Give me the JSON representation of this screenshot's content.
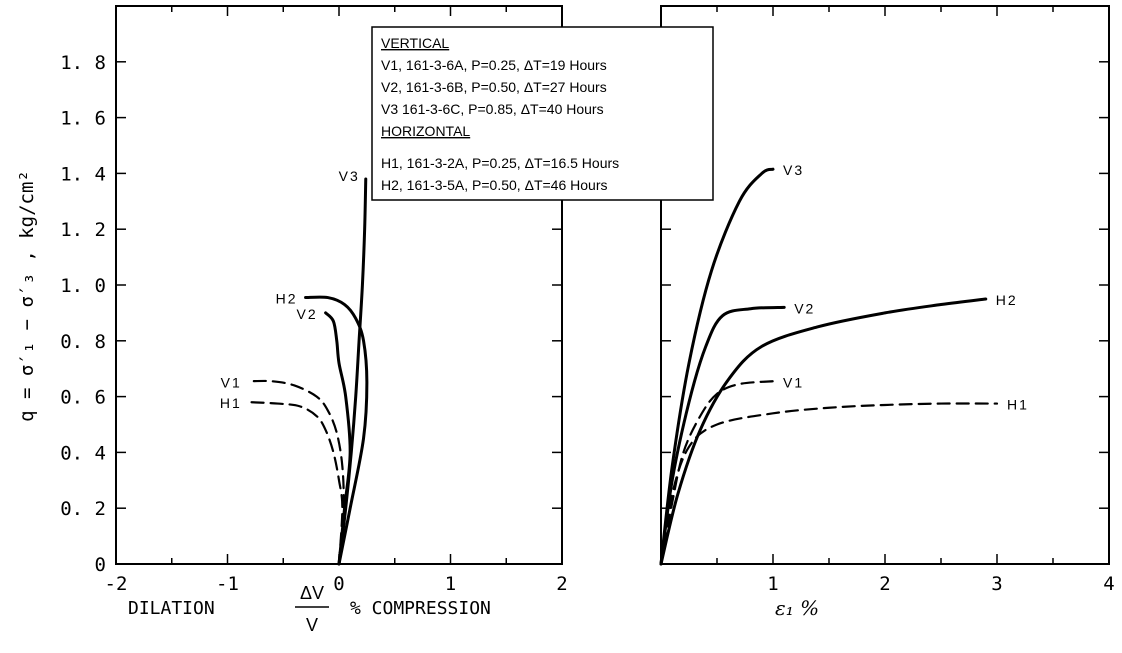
{
  "y_axis": {
    "label": "q = σ′₁ − σ′₃ ,  kg/cm²",
    "ticks": [
      {
        "value": 0,
        "label": "0"
      },
      {
        "value": 0.2,
        "label": "0. 2"
      },
      {
        "value": 0.4,
        "label": "0. 4"
      },
      {
        "value": 0.6,
        "label": "0. 6"
      },
      {
        "value": 0.8,
        "label": "0. 8"
      },
      {
        "value": 1.0,
        "label": "1. 0"
      },
      {
        "value": 1.2,
        "label": "1. 2"
      },
      {
        "value": 1.4,
        "label": "1. 4"
      },
      {
        "value": 1.6,
        "label": "1. 6"
      },
      {
        "value": 1.8,
        "label": "1. 8"
      }
    ]
  },
  "legend": {
    "vertical_heading": "VERTICAL",
    "vertical_entries": [
      "V1, 161-3-6A, P=0.25, ΔT=19 Hours",
      "V2, 161-3-6B, P=0.50, ΔT=27 Hours",
      "V3  161-3-6C, P=0.85, ΔT=40 Hours"
    ],
    "horizontal_heading": "HORIZONTAL",
    "horizontal_entries": [
      "H1, 161-3-2A, P=0.25, ΔT=16.5 Hours",
      "H2, 161-3-5A, P=0.50, ΔT=46 Hours"
    ]
  },
  "chart_data": [
    {
      "type": "line",
      "panel": "volumetric-strain",
      "xlabel_left": "DILATION",
      "xlabel_fraction_top": "ΔV",
      "xlabel_fraction_bottom": "V",
      "xlabel_right": "% COMPRESSION",
      "xlim": [
        -2,
        2
      ],
      "ylim": [
        0,
        2.0
      ],
      "x_ticks": [
        {
          "value": -2,
          "label": "-2"
        },
        {
          "value": -1,
          "label": "-1"
        },
        {
          "value": 0,
          "label": "0"
        },
        {
          "value": 1,
          "label": "1"
        },
        {
          "value": 2,
          "label": "2"
        }
      ],
      "series": [
        {
          "name": "V1",
          "style": "dashed",
          "x": [
            0.0,
            0.04,
            0.03,
            -0.02,
            -0.1,
            -0.2,
            -0.4,
            -0.6,
            -0.8
          ],
          "y": [
            0.0,
            0.2,
            0.35,
            0.47,
            0.55,
            0.6,
            0.64,
            0.655,
            0.655
          ]
        },
        {
          "name": "H1",
          "style": "dashed",
          "x": [
            0.0,
            0.03,
            0.0,
            -0.05,
            -0.12,
            -0.2,
            -0.35,
            -0.55,
            -0.8
          ],
          "y": [
            0.0,
            0.2,
            0.3,
            0.4,
            0.48,
            0.53,
            0.565,
            0.575,
            0.58
          ]
        },
        {
          "name": "V2",
          "style": "solid",
          "x": [
            0.0,
            0.05,
            0.1,
            0.06,
            0.0,
            -0.02,
            -0.05,
            -0.12
          ],
          "y": [
            0.0,
            0.2,
            0.4,
            0.6,
            0.72,
            0.8,
            0.87,
            0.9
          ]
        },
        {
          "name": "H2",
          "style": "solid",
          "x": [
            0.0,
            0.1,
            0.22,
            0.25,
            0.22,
            0.15,
            0.05,
            -0.1,
            -0.3
          ],
          "y": [
            0.0,
            0.2,
            0.45,
            0.65,
            0.8,
            0.88,
            0.93,
            0.955,
            0.955
          ]
        },
        {
          "name": "V3",
          "style": "solid",
          "x": [
            0.0,
            0.06,
            0.11,
            0.15,
            0.18,
            0.21,
            0.23,
            0.24
          ],
          "y": [
            0.0,
            0.2,
            0.4,
            0.6,
            0.8,
            1.0,
            1.2,
            1.38
          ]
        }
      ]
    },
    {
      "type": "line",
      "panel": "axial-strain",
      "xlabel": "ε₁  %",
      "xlim": [
        0,
        4
      ],
      "ylim": [
        0,
        2.0
      ],
      "x_ticks": [
        {
          "value": 1,
          "label": "1"
        },
        {
          "value": 2,
          "label": "2"
        },
        {
          "value": 3,
          "label": "3"
        },
        {
          "value": 4,
          "label": "4"
        }
      ],
      "series": [
        {
          "name": "V1",
          "style": "dashed",
          "x": [
            0.0,
            0.1,
            0.2,
            0.35,
            0.5,
            0.7,
            1.0
          ],
          "y": [
            0.0,
            0.22,
            0.4,
            0.53,
            0.61,
            0.645,
            0.655
          ]
        },
        {
          "name": "H1",
          "style": "dashed",
          "x": [
            0.0,
            0.1,
            0.25,
            0.5,
            1.0,
            1.5,
            2.0,
            2.5,
            3.0
          ],
          "y": [
            0.0,
            0.25,
            0.42,
            0.5,
            0.54,
            0.56,
            0.57,
            0.575,
            0.575
          ]
        },
        {
          "name": "V2",
          "style": "solid",
          "x": [
            0.0,
            0.1,
            0.25,
            0.4,
            0.55,
            0.8,
            1.1
          ],
          "y": [
            0.0,
            0.3,
            0.58,
            0.78,
            0.89,
            0.915,
            0.92
          ]
        },
        {
          "name": "H2",
          "style": "solid",
          "x": [
            0.0,
            0.15,
            0.35,
            0.6,
            0.9,
            1.4,
            2.0,
            2.5,
            2.9
          ],
          "y": [
            0.0,
            0.25,
            0.48,
            0.66,
            0.78,
            0.85,
            0.9,
            0.93,
            0.95
          ]
        },
        {
          "name": "V3",
          "style": "solid",
          "x": [
            0.0,
            0.1,
            0.25,
            0.45,
            0.7,
            0.9,
            1.0
          ],
          "y": [
            0.0,
            0.35,
            0.72,
            1.05,
            1.3,
            1.4,
            1.415
          ]
        }
      ]
    }
  ]
}
